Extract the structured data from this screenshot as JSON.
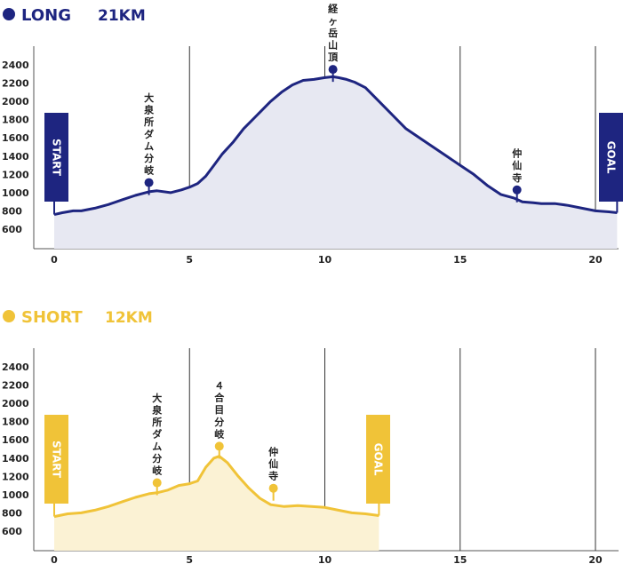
{
  "chart_data": [
    {
      "type": "area",
      "title": "LONG",
      "title_distance": "21KM",
      "color": "#1e2580",
      "fill": "#e7e8f2",
      "ylim": [
        0,
        2500
      ],
      "yticks": [
        "2400",
        "2200",
        "2000",
        "1800",
        "1600",
        "1400",
        "1200",
        "1000",
        "800",
        "600"
      ],
      "xlim": [
        0,
        20.8
      ],
      "xticks": [
        "0",
        "5",
        "10",
        "15",
        "20"
      ],
      "start_label": "START",
      "goal_label": "GOAL",
      "x": [
        0,
        0.3,
        0.7,
        1,
        1.5,
        2,
        2.5,
        3,
        3.5,
        3.8,
        4.3,
        4.7,
        5,
        5.3,
        5.6,
        5.9,
        6.2,
        6.6,
        7,
        7.5,
        8,
        8.4,
        8.8,
        9.2,
        9.6,
        10,
        10.3,
        10.5,
        10.8,
        11.1,
        11.5,
        12,
        12.5,
        13,
        13.5,
        14,
        14.5,
        15,
        15.5,
        16,
        16.5,
        17,
        17.3,
        17.7,
        18,
        18.5,
        19,
        19.5,
        20,
        20.5,
        20.8
      ],
      "y": [
        760,
        780,
        800,
        800,
        830,
        870,
        920,
        970,
        1010,
        1020,
        1000,
        1030,
        1060,
        1100,
        1180,
        1300,
        1420,
        1550,
        1700,
        1850,
        2000,
        2100,
        2180,
        2230,
        2240,
        2260,
        2270,
        2260,
        2240,
        2210,
        2150,
        2000,
        1850,
        1700,
        1600,
        1500,
        1400,
        1300,
        1200,
        1080,
        980,
        940,
        900,
        890,
        880,
        880,
        860,
        830,
        800,
        790,
        780
      ],
      "markers": [
        {
          "label": "大泉所ダム分岐",
          "x": 3.5,
          "y": 1110
        },
        {
          "label": "経ヶ岳山頂",
          "x": 10.3,
          "y": 2350
        },
        {
          "label": "仲仙寺",
          "x": 17.1,
          "y": 1030
        }
      ]
    },
    {
      "type": "area",
      "title": "SHORT",
      "title_distance": "12KM",
      "color": "#f0c338",
      "fill": "#fbf2d4",
      "ylim": [
        0,
        2500
      ],
      "yticks": [
        "2400",
        "2200",
        "2000",
        "1800",
        "1600",
        "1400",
        "1200",
        "1000",
        "800",
        "600"
      ],
      "xlim": [
        0,
        20.8
      ],
      "xticks": [
        "0",
        "5",
        "10",
        "15",
        "20"
      ],
      "start_label": "START",
      "goal_label": "GOAL",
      "x": [
        0,
        0.5,
        1,
        1.5,
        2,
        2.5,
        3,
        3.5,
        3.8,
        4.2,
        4.6,
        5,
        5.3,
        5.6,
        5.9,
        6.1,
        6.4,
        6.8,
        7.2,
        7.6,
        8,
        8.5,
        9,
        9.5,
        10,
        10.5,
        11,
        11.5,
        12
      ],
      "y": [
        760,
        790,
        800,
        830,
        870,
        920,
        970,
        1010,
        1020,
        1050,
        1100,
        1120,
        1150,
        1300,
        1400,
        1420,
        1350,
        1200,
        1070,
        960,
        890,
        870,
        880,
        870,
        860,
        830,
        800,
        790,
        770
      ],
      "markers": [
        {
          "label": "大泉所ダム分岐",
          "x": 3.8,
          "y": 1130
        },
        {
          "label": "４合目分岐",
          "x": 6.1,
          "y": 1530
        },
        {
          "label": "仲仙寺",
          "x": 8.1,
          "y": 1070
        }
      ]
    }
  ]
}
